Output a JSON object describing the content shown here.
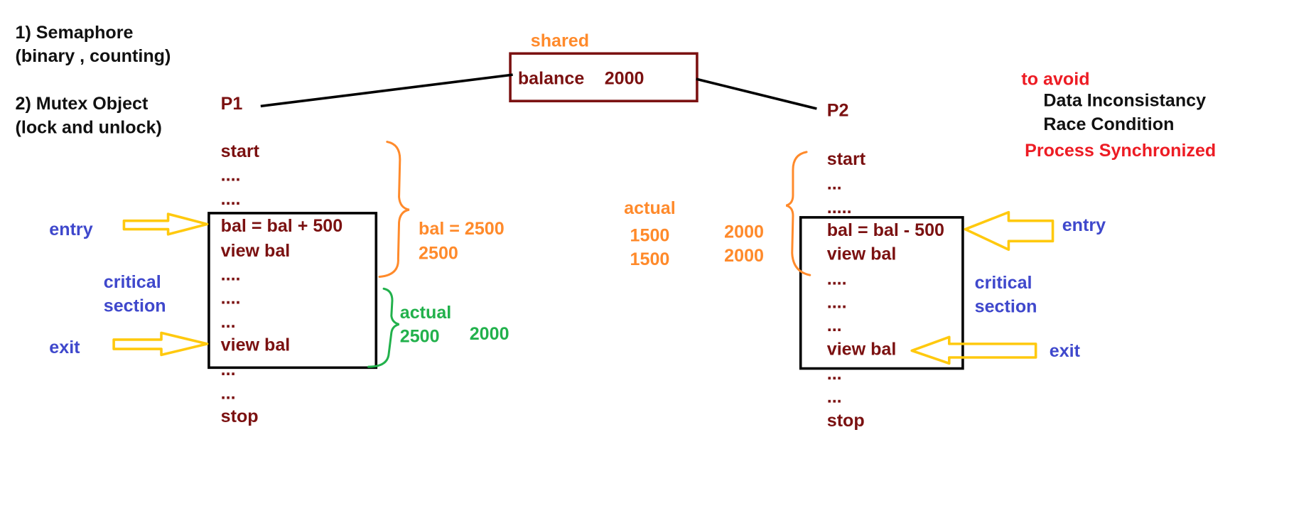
{
  "sync_methods": {
    "semaphore": "1) Semaphore",
    "semaphore_types": "(binary , counting)",
    "mutex": "2) Mutex Object",
    "mutex_types": "(lock and unlock)"
  },
  "shared": {
    "label": "shared",
    "variable": "balance",
    "value": "2000"
  },
  "p1": {
    "name": "P1",
    "lines": [
      "start",
      "....",
      "....",
      "bal = bal + 500",
      "view bal",
      "....",
      "....",
      "...",
      "view bal",
      "...",
      "...",
      "stop"
    ],
    "entry_label": "entry",
    "exit_label": "exit",
    "critical_label_1": "critical",
    "critical_label_2": "section",
    "note_bal": "bal = 2500",
    "note_value": "2500",
    "actual_label": "actual",
    "actual_value_1": "2500",
    "actual_value_2": "2000"
  },
  "p2": {
    "name": "P2",
    "lines": [
      "start",
      "...",
      ".....",
      "bal = bal - 500",
      "view bal",
      "....",
      "....",
      "...",
      "view bal",
      "...",
      "...",
      "stop"
    ],
    "entry_label": "entry",
    "exit_label": "exit",
    "critical_label_1": "critical",
    "critical_label_2": "section",
    "actual_label": "actual",
    "actual_left_1": "1500",
    "actual_left_2": "1500",
    "actual_right_1": "2000",
    "actual_right_2": "2000"
  },
  "goals": {
    "heading": "to avoid",
    "item_1": "Data Inconsistancy",
    "item_2": "Race Condition",
    "result": "Process Synchronized"
  },
  "colors": {
    "maroon": "#7b1111",
    "orange": "#ff8a2b",
    "green": "#22b14c",
    "blue": "#3f48cc",
    "red": "#ed1c24",
    "arrow_yellow": "#ffc90e"
  }
}
